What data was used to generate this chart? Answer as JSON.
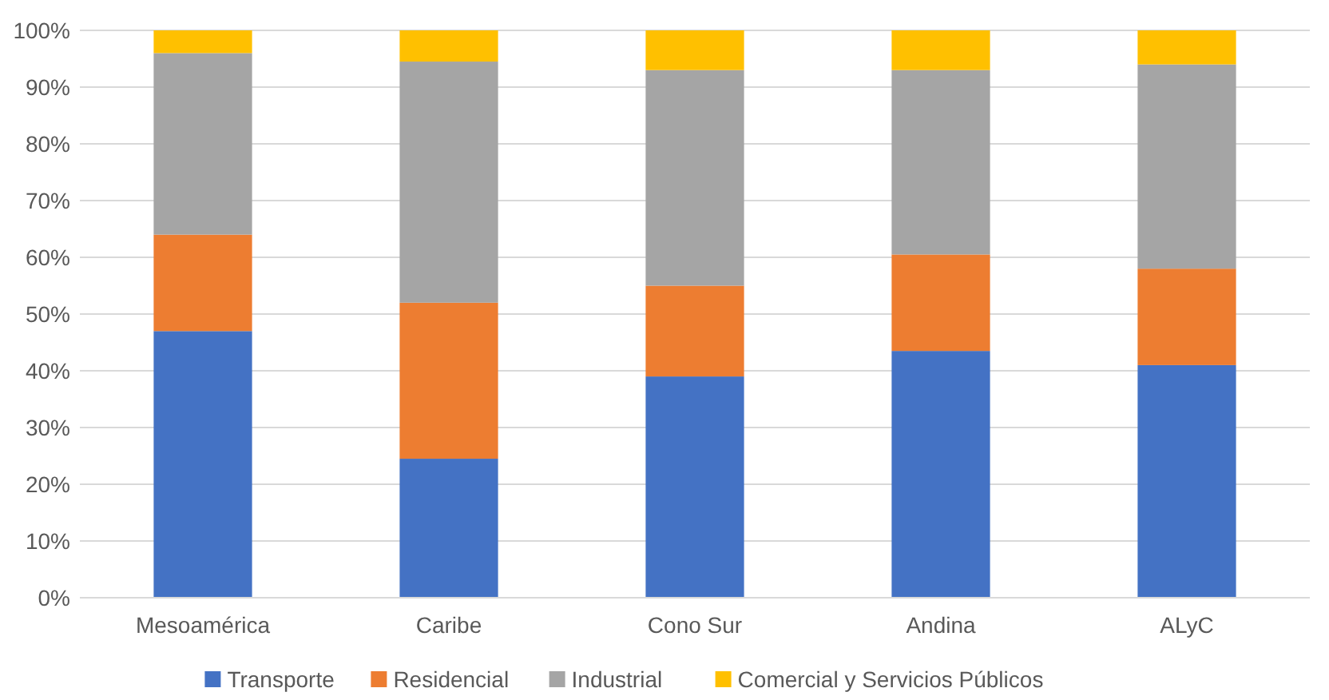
{
  "chart_data": {
    "type": "bar",
    "stacked": true,
    "categories": [
      "Mesoamérica",
      "Caribe",
      "Cono Sur",
      "Andina",
      "ALyC"
    ],
    "series": [
      {
        "name": "Transporte",
        "color": "#4472c4",
        "values": [
          47,
          24.5,
          39,
          43.5,
          41
        ]
      },
      {
        "name": "Residencial",
        "color": "#ed7d31",
        "values": [
          17,
          27.5,
          16,
          17,
          17
        ]
      },
      {
        "name": "Industrial",
        "color": "#a5a5a5",
        "values": [
          32,
          42.5,
          38,
          32.5,
          36
        ]
      },
      {
        "name": "Comercial y Servicios Públicos",
        "color": "#ffc000",
        "values": [
          4,
          5.5,
          7,
          7,
          6
        ]
      }
    ],
    "ylim": [
      0,
      100
    ],
    "yticks": [
      {
        "value": 0,
        "label": "0%"
      },
      {
        "value": 10,
        "label": "10%"
      },
      {
        "value": 20,
        "label": "20%"
      },
      {
        "value": 30,
        "label": "30%"
      },
      {
        "value": 40,
        "label": "40%"
      },
      {
        "value": 50,
        "label": "50%"
      },
      {
        "value": 60,
        "label": "60%"
      },
      {
        "value": 70,
        "label": "70%"
      },
      {
        "value": 80,
        "label": "80%"
      },
      {
        "value": 90,
        "label": "90%"
      },
      {
        "value": 100,
        "label": "100%"
      }
    ],
    "grid": "y",
    "legend": "bottom"
  }
}
